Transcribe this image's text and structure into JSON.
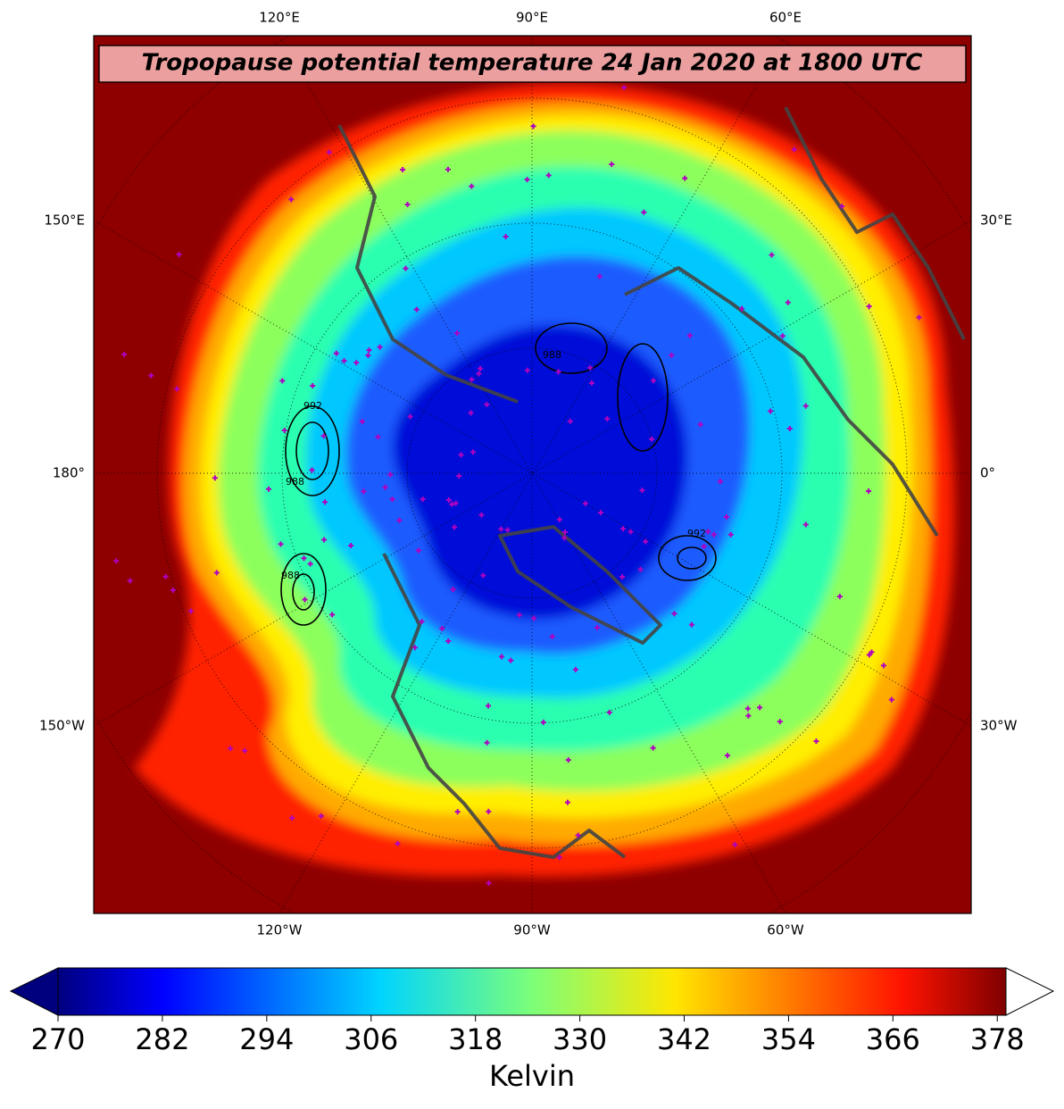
{
  "title": "Tropopause potential temperature 24 Jan 2020 at 1800 UTC",
  "map": {
    "top_labels": [
      "120°E",
      "90°E",
      "60°E"
    ],
    "bottom_labels": [
      "120°W",
      "90°W",
      "60°W"
    ],
    "left_labels": [
      "150°E",
      "180°",
      "150°W"
    ],
    "right_labels": [
      "30°E",
      "0°",
      "30°W"
    ],
    "contour_labels": [
      "992",
      "988",
      "988",
      "992",
      "988"
    ]
  },
  "colorbar": {
    "range": [
      270,
      379
    ],
    "ticks": [
      270,
      282,
      294,
      306,
      318,
      330,
      342,
      354,
      366,
      378
    ],
    "label": "Kelvin"
  }
}
